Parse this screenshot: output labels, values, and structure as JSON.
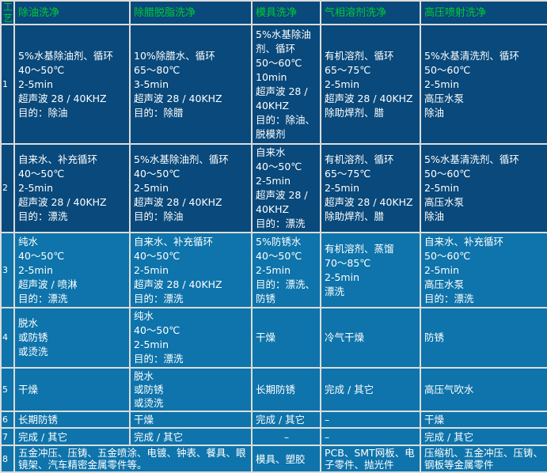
{
  "colors": {
    "header_text": "#00CC33",
    "body_text": "#FFFFFF",
    "header_bg": "#09497B",
    "dark_row_bg": "#09497B",
    "light_row_bg": "#0E74AB",
    "grid_border": "#DCDCDC",
    "outer_border": "#C0C0C0"
  },
  "table": {
    "corner_header": "工艺",
    "columns": [
      "除油洗净",
      "除腊脱脂洗净",
      "模具洗净",
      "气相溶剂洗净",
      "高压喷射洗净"
    ],
    "rows": [
      {
        "num": "1",
        "cells": [
          {
            "text": "5%水基除油剂、循环\n40～50℃\n2-5min\n超声波 28 / 40KHZ\n目的：除油"
          },
          {
            "text": "10%除腊水、循环\n65～80℃\n3-5min\n超声波 28 / 40KHZ\n目的：除腊"
          },
          {
            "text": "5%水基除油剂、循环\n50～60℃\n10min\n超声波 28 / 40KHZ\n目的：除油、脱模剂"
          },
          {
            "text": "有机溶剂、循环\n65～75℃\n2-5min\n超声波 28 / 40KHZ\n除助焊剂、腊"
          },
          {
            "text": "5%水基清洗剂、循环\n50～60℃\n2-5min\n高压水泵\n除油"
          }
        ]
      },
      {
        "num": "2",
        "cells": [
          {
            "text": "自来水、补充循环\n40～50℃\n2-5min\n超声波 28 / 40KHZ\n目的：漂洗"
          },
          {
            "text": "5%水基除油剂、循环\n40～50℃\n2-5min\n超声波 28 / 40KHZ\n目的：除油"
          },
          {
            "text": "自来水\n40～50℃\n2-5min\n超声波 28 / 40KHZ\n目的：漂洗"
          },
          {
            "text": "有机溶剂、循环\n65～75℃\n2-5min\n超声波 28 / 40KHZ\n除助焊剂、腊"
          },
          {
            "text": "5%水基清洗剂、循环\n50～60℃\n2-5min\n高压水泵\n除油"
          }
        ]
      },
      {
        "num": "3",
        "cells": [
          {
            "text": "纯水\n40～50℃\n2-5min\n超声波 / 喷淋\n目的：漂洗"
          },
          {
            "text": "自来水、补充循环\n40～50℃\n2-5min\n超声波 28 / 40KHZ\n目的：漂洗"
          },
          {
            "text": "5%防锈水\n40～50℃\n2-5min\n目的：漂洗、防锈"
          },
          {
            "text": "有机溶剂、蒸馏\n70～85℃\n2-5min\n漂洗"
          },
          {
            "text": "自来水、补充循环\n50～60℃\n2-5min\n高压水泵\n目的：漂洗"
          }
        ]
      },
      {
        "num": "4",
        "cells": [
          {
            "text": "脱水\n或防锈\n或烫洗"
          },
          {
            "text": "纯水\n40～50℃\n2-5min\n目的：漂洗"
          },
          {
            "text": "干燥"
          },
          {
            "text": "冷气干燥"
          },
          {
            "text": "防锈"
          }
        ]
      },
      {
        "num": "5",
        "cells": [
          {
            "text": "干燥"
          },
          {
            "text": "脱水\n或防锈\n或烫洗"
          },
          {
            "text": "长期防锈"
          },
          {
            "text": "完成 / 其它"
          },
          {
            "text": "高压气吹水"
          }
        ]
      },
      {
        "num": "6",
        "cells": [
          {
            "text": "长期防锈"
          },
          {
            "text": "干燥"
          },
          {
            "text": "完成 / 其它"
          },
          {
            "text": "–"
          },
          {
            "text": "干燥"
          }
        ]
      },
      {
        "num": "7",
        "cells": [
          {
            "text": "完成 / 其它"
          },
          {
            "text": "完成 / 其它"
          },
          {
            "text": "–",
            "align": "center"
          },
          {
            "text": "–"
          },
          {
            "text": "完成 / 其它"
          }
        ]
      },
      {
        "num": "8",
        "cells": [
          {
            "text": "五金冲压、压铸、五金喷涂、电镀、钟表、餐具、眼镜架、汽车精密金属零件等。",
            "colspan": 2
          },
          {
            "text": "模具、塑胶"
          },
          {
            "text": "PCB、SMT网板、电子零件、抛光件"
          },
          {
            "text": "压缩机、五金冲压、压铸、钢板等金属零件"
          }
        ]
      }
    ]
  }
}
